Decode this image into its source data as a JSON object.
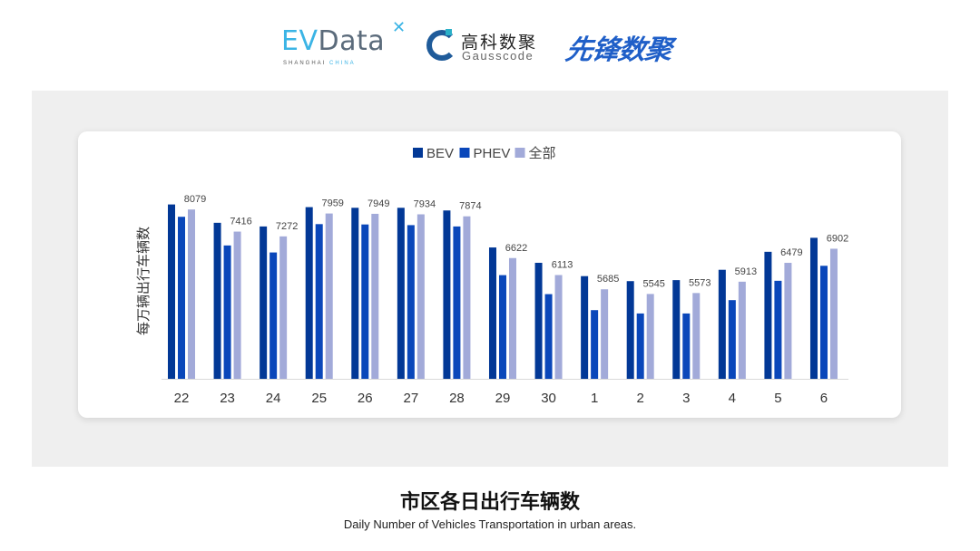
{
  "logos": {
    "evdata": {
      "ev": "EV",
      "rest": "Data",
      "sub_a": "SHANGHAI",
      "sub_b": "CHINA"
    },
    "gausscode": {
      "cn": "高科数聚",
      "en": "Gausscode"
    },
    "xianfeng": "先锋数聚"
  },
  "caption": {
    "title": "市区各日出行车辆数",
    "subtitle": "Daily Number of Vehicles Transportation in urban areas."
  },
  "chart_data": {
    "type": "bar",
    "title": "",
    "xlabel": "",
    "ylabel": "每万辆出行车辆数",
    "ylim": [
      3000,
      8600
    ],
    "grid": false,
    "legend_position": "top",
    "categories": [
      "22",
      "23",
      "24",
      "25",
      "26",
      "27",
      "28",
      "29",
      "30",
      "1",
      "2",
      "3",
      "4",
      "5",
      "6"
    ],
    "series": [
      {
        "name": "BEV",
        "color": "#023896",
        "values": [
          8230,
          7680,
          7570,
          8150,
          8130,
          8130,
          8050,
          6940,
          6480,
          6080,
          5930,
          5960,
          6270,
          6810,
          7230
        ]
      },
      {
        "name": "PHEV",
        "color": "#0a47ba",
        "values": [
          7860,
          7000,
          6790,
          7640,
          7630,
          7610,
          7570,
          6110,
          5540,
          5060,
          4960,
          4960,
          5360,
          5940,
          6390
        ]
      },
      {
        "name": "全部",
        "color": "#a2aad9",
        "values": [
          8079,
          7416,
          7272,
          7959,
          7949,
          7934,
          7874,
          6622,
          6113,
          5685,
          5545,
          5573,
          5913,
          6479,
          6902
        ],
        "labels_shown": true
      }
    ]
  }
}
